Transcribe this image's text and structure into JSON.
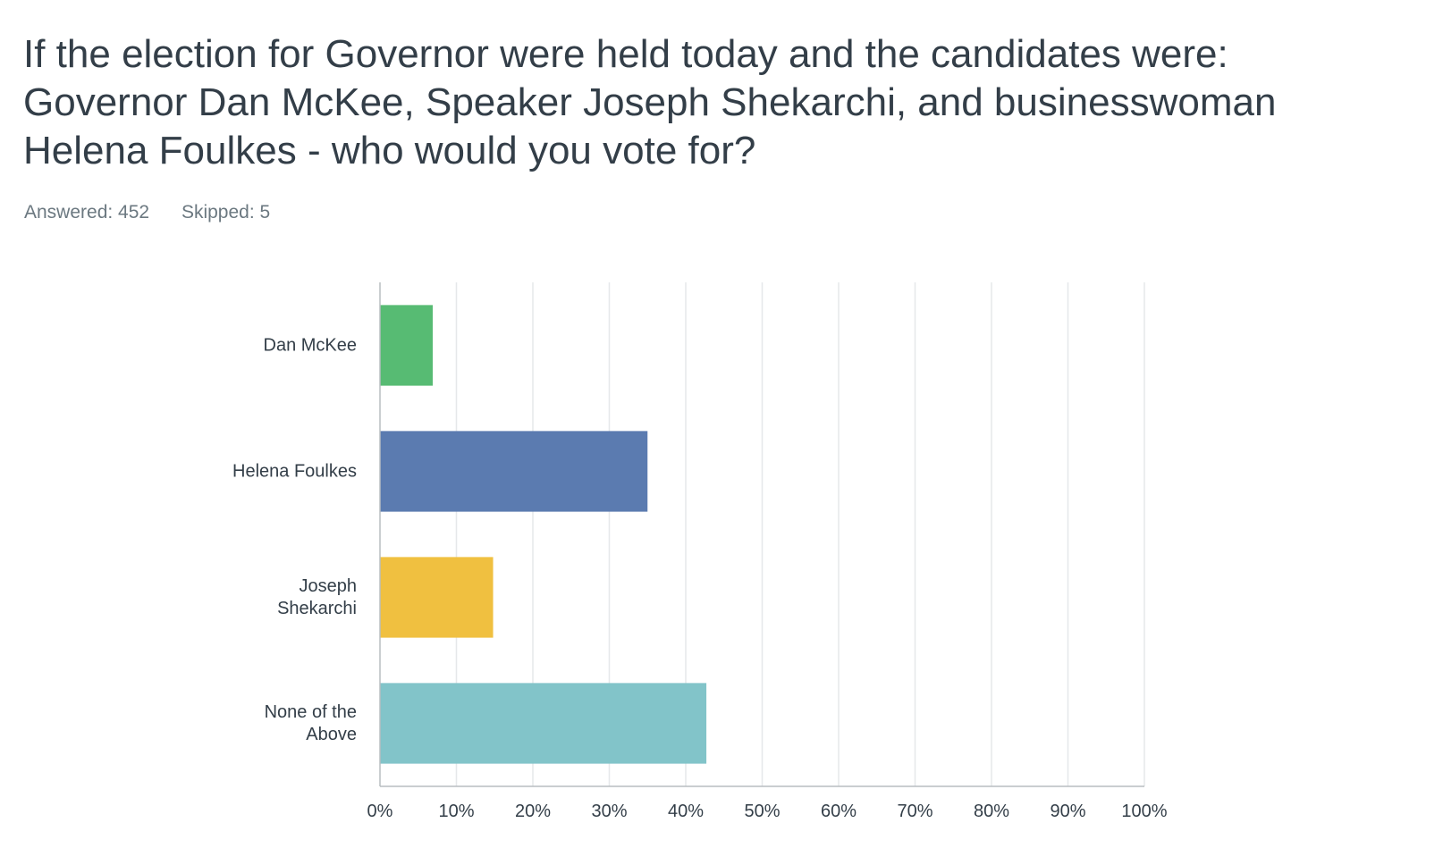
{
  "question": {
    "title": "If the election for Governor were held today and the candidates were: Governor Dan McKee, Speaker Joseph Shekarchi, and businesswoman Helena Foulkes - who would you vote for?",
    "answered": "Answered: 452",
    "skipped": "Skipped: 5"
  },
  "chart_data": {
    "type": "bar",
    "orientation": "horizontal",
    "categories": [
      [
        "Dan McKee"
      ],
      [
        "Helena Foulkes"
      ],
      [
        "Joseph",
        "Shekarchi"
      ],
      [
        "None of the",
        "Above"
      ]
    ],
    "values": [
      6.9,
      35.0,
      14.8,
      42.7
    ],
    "colors": [
      "#57bb73",
      "#5b7bb0",
      "#f0c040",
      "#82c4c9"
    ],
    "xlim": [
      0,
      100
    ],
    "xticks": [
      "0%",
      "10%",
      "20%",
      "30%",
      "40%",
      "50%",
      "60%",
      "70%",
      "80%",
      "90%",
      "100%"
    ],
    "grid": true,
    "title": "",
    "xlabel": "",
    "ylabel": ""
  }
}
